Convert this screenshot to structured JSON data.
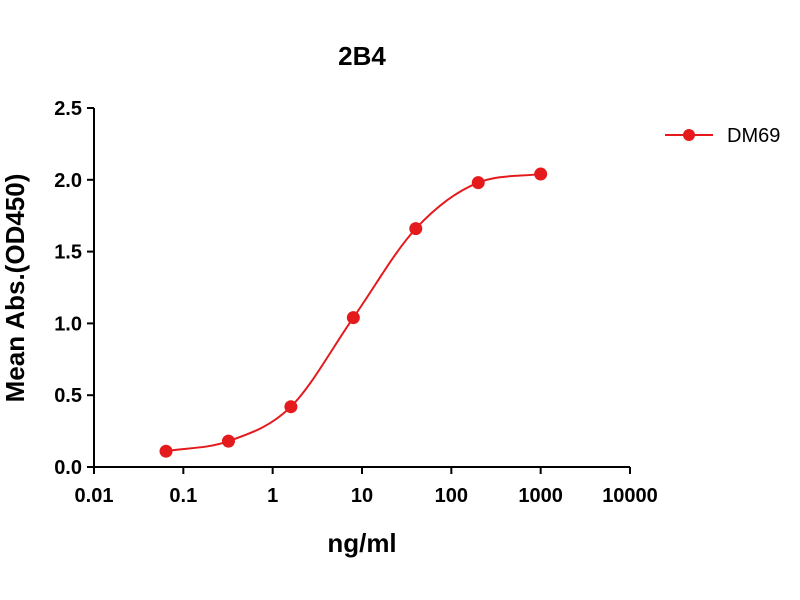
{
  "chart_data": {
    "type": "line",
    "title": "2B4",
    "xlabel": "ng/ml",
    "ylabel": "Mean Abs.(OD450)",
    "xscale": "log",
    "xlim": [
      0.01,
      10000
    ],
    "ylim": [
      0,
      2.5
    ],
    "xticks": [
      0.01,
      0.1,
      1,
      10,
      100,
      1000,
      10000
    ],
    "xtick_labels": [
      "0.01",
      "0.1",
      "1",
      "10",
      "100",
      "1000",
      "10000"
    ],
    "yticks": [
      0,
      0.5,
      1,
      1.5,
      2,
      2.5
    ],
    "ytick_labels": [
      "0.0",
      "0.5",
      "1.0",
      "1.5",
      "2.0",
      "2.5"
    ],
    "grid": false,
    "legend_position": "top-right",
    "series": [
      {
        "name": "DM69",
        "color": "#e41a1c",
        "marker": "circle",
        "x": [
          0.064,
          0.32,
          1.6,
          8,
          40,
          200,
          1000
        ],
        "y": [
          0.11,
          0.18,
          0.42,
          1.04,
          1.66,
          1.98,
          2.04
        ]
      }
    ]
  }
}
